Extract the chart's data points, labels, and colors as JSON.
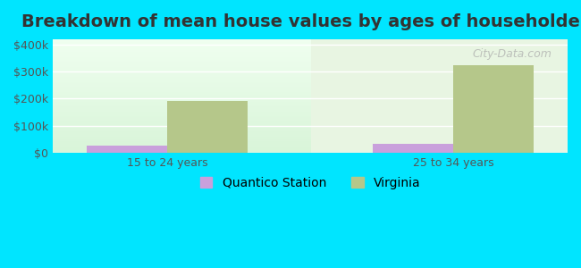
{
  "title": "Breakdown of mean house values by ages of householders",
  "categories": [
    "15 to 24 years",
    "25 to 34 years"
  ],
  "quantico_values": [
    25000,
    32000
  ],
  "virginia_values": [
    193000,
    325000
  ],
  "quantico_color": "#c9a0dc",
  "virginia_color": "#b5c78a",
  "background_color": "#00e5ff",
  "plot_bg_gradient_top": "#e8f5e8",
  "plot_bg_gradient_bottom": "#f0faf0",
  "ylim": [
    0,
    420000
  ],
  "yticks": [
    0,
    100000,
    200000,
    300000,
    400000
  ],
  "ytick_labels": [
    "$0",
    "$100k",
    "$200k",
    "$300k",
    "$400k"
  ],
  "bar_width": 0.28,
  "title_fontsize": 14,
  "tick_fontsize": 9,
  "legend_fontsize": 10,
  "watermark_text": "City-Data.com"
}
